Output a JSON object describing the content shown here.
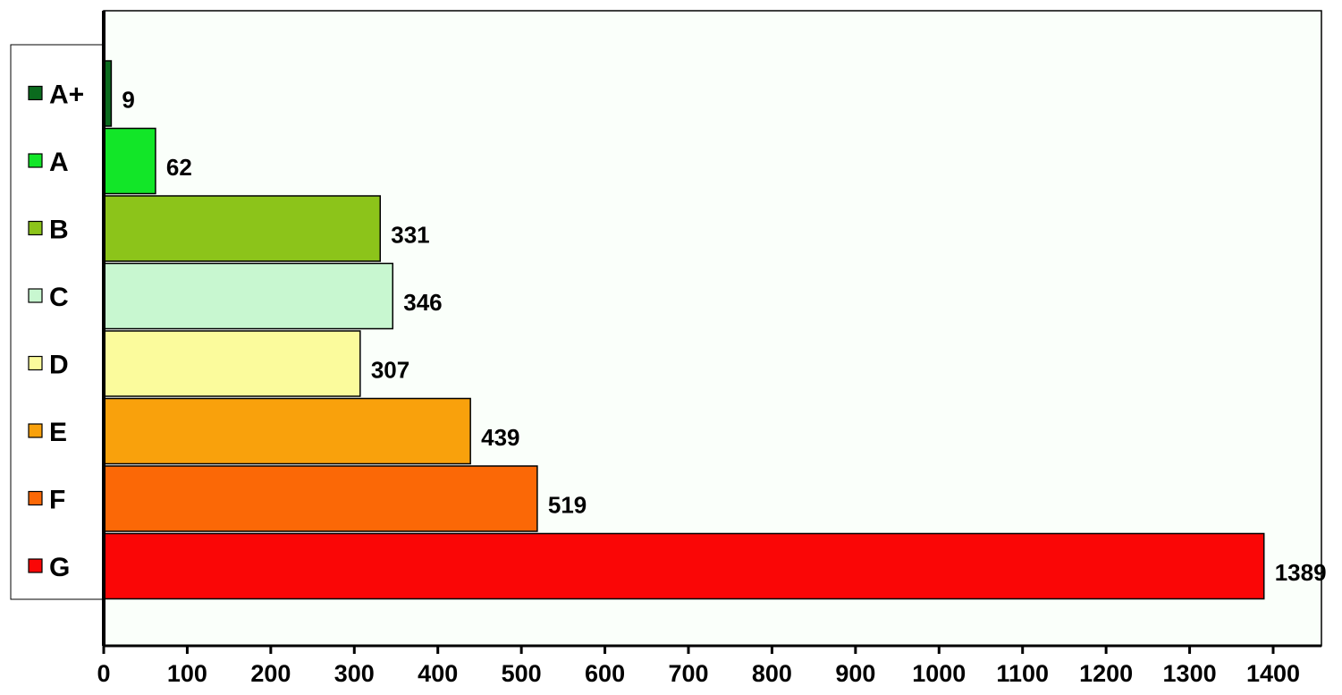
{
  "chart_data": {
    "type": "bar",
    "orientation": "horizontal",
    "categories": [
      "A+",
      "A",
      "B",
      "C",
      "D",
      "E",
      "F",
      "G"
    ],
    "values": [
      9,
      62,
      331,
      346,
      307,
      439,
      519,
      1389
    ],
    "data_labels": [
      "9",
      "62",
      "331",
      "346",
      "307",
      "439",
      "519",
      "1389"
    ],
    "colors": [
      "#0b6b1e",
      "#12e628",
      "#8cc41a",
      "#c8f7d0",
      "#fbfb9c",
      "#f9a10c",
      "#fb6806",
      "#fa0606"
    ],
    "xlim": [
      0,
      1400
    ],
    "x_ticks": [
      "0",
      "100",
      "200",
      "300",
      "400",
      "500",
      "600",
      "700",
      "800",
      "900",
      "1000",
      "1100",
      "1200",
      "1300",
      "1400"
    ],
    "title": "",
    "xlabel": "",
    "ylabel": "",
    "grid": false,
    "legend_position": "left",
    "plot_background": "#fafffa"
  }
}
